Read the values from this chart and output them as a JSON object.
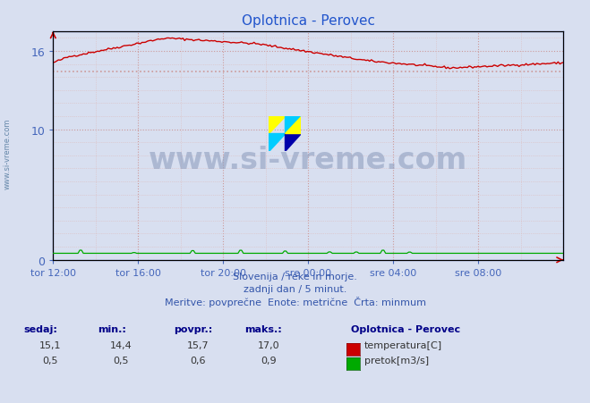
{
  "title": "Oplotnica - Perovec",
  "background_color": "#d8dff0",
  "plot_bg_color": "#d8dff0",
  "x_tick_labels": [
    "tor 12:00",
    "tor 16:00",
    "tor 20:00",
    "sre 00:00",
    "sre 04:00",
    "sre 08:00"
  ],
  "ylabel_color": "#4466bb",
  "grid_color_major": "#cc9999",
  "grid_color_minor": "#ddbbbb",
  "temp_color": "#cc0000",
  "flow_color": "#00aa00",
  "min_line_color": "#cc9999",
  "temp_min": 14.4,
  "temp_max": 17.0,
  "temp_avg": 15.7,
  "temp_now": 15.1,
  "flow_min": 0.5,
  "flow_max": 0.9,
  "flow_avg": 0.6,
  "flow_now": 0.5,
  "y_min": 0,
  "y_max": 17.5,
  "subtitle1": "Slovenija / reke in morje.",
  "subtitle2": "zadnji dan / 5 minut.",
  "subtitle3": "Meritve: povprečne  Enote: metrične  Črta: minmum",
  "watermark": "www.si-vreme.com",
  "legend_title": "Oplotnica - Perovec",
  "legend_temp": "temperatura[C]",
  "legend_flow": "pretok[m3/s]",
  "col_sedaj": "sedaj:",
  "col_min": "min.:",
  "col_povpr": "povpr.:",
  "col_maks": "maks.:",
  "n_points": 288
}
